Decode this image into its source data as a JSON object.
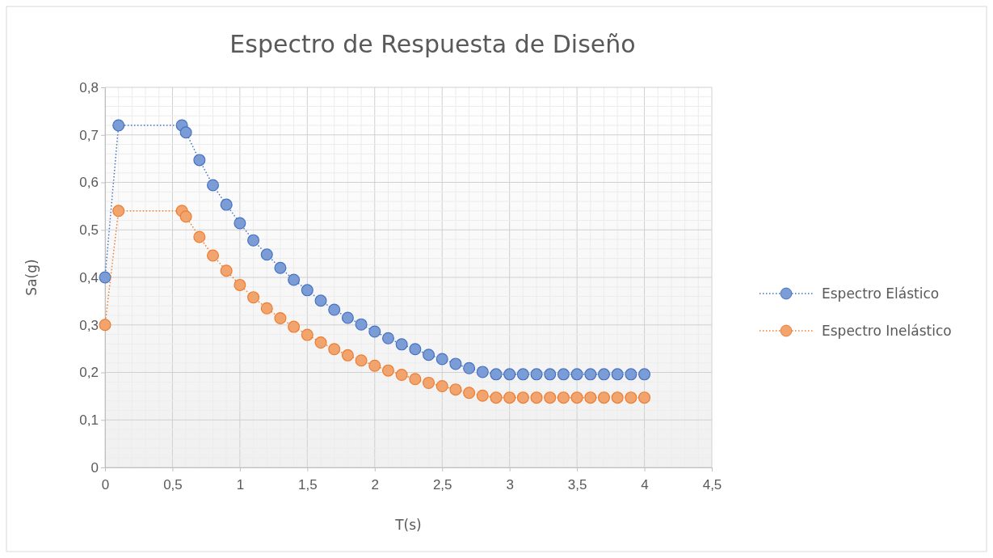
{
  "chart_data": {
    "type": "line",
    "title": "Espectro de Respuesta de Diseño",
    "xlabel": "T(s)",
    "ylabel": "Sa(g)",
    "x": [
      0,
      0.1,
      0.57,
      0.6,
      0.7,
      0.8,
      0.9,
      1,
      1.1,
      1.2,
      1.3,
      1.4,
      1.5,
      1.6,
      1.7,
      1.8,
      1.9,
      2,
      2.1,
      2.2,
      2.3,
      2.4,
      2.5,
      2.6,
      2.7,
      2.8,
      2.9,
      3,
      3.1,
      3.2,
      3.3,
      3.4,
      3.5,
      3.6,
      3.7,
      3.8,
      3.9,
      4
    ],
    "series": [
      {
        "name": "Espectro Elástico",
        "color": "#4472c4",
        "values": [
          0.4,
          0.72,
          0.72,
          0.705,
          0.647,
          0.594,
          0.553,
          0.514,
          0.478,
          0.448,
          0.42,
          0.395,
          0.373,
          0.351,
          0.332,
          0.315,
          0.301,
          0.286,
          0.272,
          0.259,
          0.249,
          0.237,
          0.228,
          0.218,
          0.209,
          0.201,
          0.196,
          0.196,
          0.196,
          0.196,
          0.196,
          0.196,
          0.196,
          0.196,
          0.196,
          0.196,
          0.196,
          0.196
        ]
      },
      {
        "name": "Espectro Inelástico",
        "color": "#ed7d31",
        "values": [
          0.3,
          0.54,
          0.54,
          0.528,
          0.485,
          0.446,
          0.414,
          0.384,
          0.358,
          0.335,
          0.314,
          0.296,
          0.279,
          0.263,
          0.249,
          0.236,
          0.225,
          0.214,
          0.204,
          0.195,
          0.186,
          0.178,
          0.171,
          0.164,
          0.157,
          0.151,
          0.147,
          0.147,
          0.147,
          0.147,
          0.147,
          0.147,
          0.147,
          0.147,
          0.147,
          0.147,
          0.147,
          0.147
        ]
      }
    ],
    "xlim": [
      0,
      4.5
    ],
    "xticks": [
      {
        "value": 0,
        "label": "0"
      },
      {
        "value": 0.5,
        "label": "0,5"
      },
      {
        "value": 1,
        "label": "1"
      },
      {
        "value": 1.5,
        "label": "1,5"
      },
      {
        "value": 2,
        "label": "2"
      },
      {
        "value": 2.5,
        "label": "2,5"
      },
      {
        "value": 3,
        "label": "3"
      },
      {
        "value": 3.5,
        "label": "3,5"
      },
      {
        "value": 4,
        "label": "4"
      },
      {
        "value": 4.5,
        "label": "4,5"
      }
    ],
    "ylim": [
      0,
      0.8
    ],
    "yticks": [
      {
        "value": 0,
        "label": "0"
      },
      {
        "value": 0.1,
        "label": "0,1"
      },
      {
        "value": 0.2,
        "label": "0,2"
      },
      {
        "value": 0.3,
        "label": "0,3"
      },
      {
        "value": 0.4,
        "label": "0,4"
      },
      {
        "value": 0.5,
        "label": "0,5"
      },
      {
        "value": 0.6,
        "label": "0,6"
      },
      {
        "value": 0.7,
        "label": "0,7"
      },
      {
        "value": 0.8,
        "label": "0,8"
      }
    ],
    "grid": true,
    "legend": "right",
    "marker": "circle",
    "line_style": "dotted"
  }
}
